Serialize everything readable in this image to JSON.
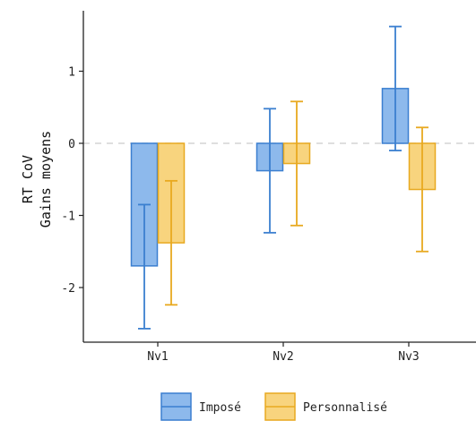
{
  "chart_data": {
    "type": "bar",
    "title": "",
    "xlabel": "",
    "ylabel_lines": [
      "RT CoV",
      "Gains moyens"
    ],
    "categories": [
      "Nv1",
      "Nv2",
      "Nv3"
    ],
    "ylim": [
      -2.75,
      1.85
    ],
    "yticks": [
      1,
      0,
      -1,
      -2
    ],
    "ytick_labels": [
      "1",
      "0",
      "-1",
      "-2"
    ],
    "reference_line": {
      "y": 0,
      "style": "dashed",
      "color": "#d3d3d3"
    },
    "grid": false,
    "legend_position": "bottom",
    "series": [
      {
        "name": "Imposé",
        "fill": "#8db9ec",
        "stroke": "#3b7fd0",
        "values": [
          -1.7,
          -0.38,
          0.76
        ],
        "error_low": [
          -2.57,
          -1.24,
          -0.1
        ],
        "error_high": [
          -0.85,
          0.48,
          1.62
        ]
      },
      {
        "name": "Personnalisé",
        "fill": "#f8d47e",
        "stroke": "#e8a920",
        "values": [
          -1.38,
          -0.28,
          -0.64
        ],
        "error_low": [
          -2.24,
          -1.14,
          -1.5
        ],
        "error_high": [
          -0.52,
          0.58,
          0.22
        ]
      }
    ]
  }
}
